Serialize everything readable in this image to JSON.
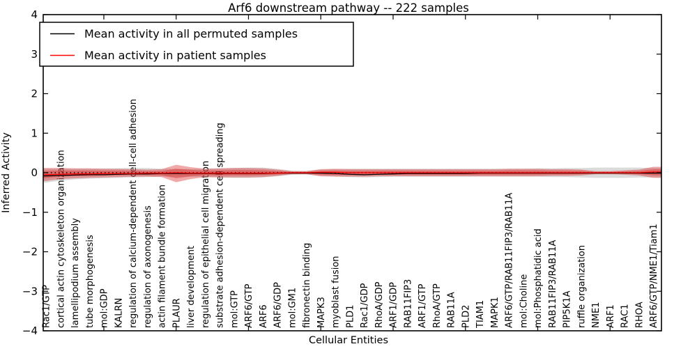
{
  "chart_data": {
    "type": "line",
    "title": "Arf6 downstream pathway -- 222 samples",
    "xlabel": "Cellular Entities",
    "ylabel": "Inferred Activity",
    "ylim": [
      -4,
      4
    ],
    "yticks": [
      -4,
      -3,
      -2,
      -1,
      0,
      1,
      2,
      3,
      4
    ],
    "grid": false,
    "legend_position": "upper left",
    "zero_line": {
      "y": 0,
      "style": "dotted",
      "color": "#000000"
    },
    "categories": [
      "Rac1/GTP",
      "cortical actin cytoskeleton organization",
      "lamellipodium assembly",
      "tube morphogenesis",
      "mol:GDP",
      "KALRN",
      "regulation of calcium-dependent cell-cell adhesion",
      "regulation of axonogenesis",
      "actin filament bundle formation",
      "PLAUR",
      "liver development",
      "regulation of epithelial cell migration",
      "substrate adhesion-dependent cell spreading",
      "mol:GTP",
      "ARF6/GTP",
      "ARF6",
      "ARF6/GDP",
      "mol:GM1",
      "fibronectin binding",
      "MAPK3",
      "myoblast fusion",
      "PLD1",
      "Rac1/GDP",
      "RhoA/GDP",
      "ARF1/GDP",
      "RAB11FIP3",
      "ARF1/GTP",
      "RhoA/GTP",
      "RAB11A",
      "PLD2",
      "TIAM1",
      "MAPK1",
      "ARF6/GTP/RAB11FIP3/RAB11A",
      "mol:Choline",
      "mol:Phosphatidic acid",
      "RAB11FIP3/RAB11A",
      "PIP5K1A",
      "ruffle organization",
      "NME1",
      "ARF1",
      "RAC1",
      "RHOA",
      "ARF6/GTP/NME1/Tiam1"
    ],
    "series": [
      {
        "name": "Mean activity in all permuted samples",
        "color": "#000000",
        "band_color": "#999999",
        "band_opacity": 0.35,
        "values": [
          -0.08,
          -0.07,
          -0.06,
          -0.05,
          -0.05,
          -0.04,
          -0.03,
          -0.03,
          -0.02,
          -0.02,
          -0.02,
          -0.02,
          -0.02,
          -0.02,
          -0.02,
          -0.02,
          -0.01,
          -0.01,
          -0.01,
          -0.01,
          -0.02,
          -0.04,
          -0.05,
          -0.04,
          -0.03,
          -0.02,
          -0.02,
          -0.02,
          -0.02,
          -0.02,
          -0.01,
          -0.01,
          -0.01,
          -0.01,
          -0.01,
          -0.01,
          -0.01,
          -0.01,
          -0.01,
          -0.01,
          -0.01,
          -0.01,
          -0.01
        ],
        "band_upper": [
          0.1,
          0.1,
          0.1,
          0.1,
          0.11,
          0.11,
          0.12,
          0.12,
          0.1,
          0.09,
          0.09,
          0.1,
          0.11,
          0.12,
          0.13,
          0.13,
          0.1,
          0.05,
          0.04,
          0.08,
          0.09,
          0.1,
          0.1,
          0.1,
          0.1,
          0.1,
          0.1,
          0.1,
          0.1,
          0.1,
          0.1,
          0.1,
          0.1,
          0.1,
          0.11,
          0.11,
          0.12,
          0.12,
          0.13,
          0.13,
          0.13,
          0.13,
          0.12
        ],
        "band_lower": [
          -0.25,
          -0.2,
          -0.17,
          -0.15,
          -0.14,
          -0.13,
          -0.12,
          -0.11,
          -0.1,
          -0.1,
          -0.1,
          -0.11,
          -0.12,
          -0.13,
          -0.13,
          -0.12,
          -0.09,
          -0.05,
          -0.04,
          -0.08,
          -0.09,
          -0.11,
          -0.12,
          -0.11,
          -0.1,
          -0.1,
          -0.1,
          -0.1,
          -0.1,
          -0.1,
          -0.1,
          -0.1,
          -0.1,
          -0.1,
          -0.1,
          -0.11,
          -0.11,
          -0.12,
          -0.13,
          -0.13,
          -0.13,
          -0.12,
          -0.12
        ]
      },
      {
        "name": "Mean activity in patient samples",
        "color": "#ff0000",
        "band_color": "#d92525",
        "band_opacity": 0.4,
        "values": [
          -0.05,
          -0.04,
          -0.03,
          -0.03,
          -0.02,
          -0.02,
          -0.02,
          -0.01,
          -0.01,
          0.0,
          -0.01,
          -0.01,
          -0.01,
          -0.01,
          -0.01,
          -0.01,
          -0.01,
          0.0,
          0.0,
          0.01,
          0.01,
          0.0,
          0.0,
          0.0,
          0.0,
          0.0,
          0.0,
          0.0,
          0.0,
          0.0,
          0.0,
          0.0,
          0.0,
          0.0,
          0.0,
          0.0,
          0.0,
          0.0,
          0.0,
          0.0,
          0.0,
          0.0,
          0.02
        ],
        "band_upper": [
          0.12,
          0.12,
          0.11,
          0.11,
          0.1,
          0.1,
          0.09,
          0.08,
          0.09,
          0.2,
          0.14,
          0.1,
          0.11,
          0.12,
          0.12,
          0.11,
          0.08,
          0.04,
          0.04,
          0.09,
          0.1,
          0.09,
          0.09,
          0.09,
          0.09,
          0.09,
          0.09,
          0.09,
          0.09,
          0.09,
          0.09,
          0.09,
          0.1,
          0.1,
          0.1,
          0.09,
          0.09,
          0.08,
          0.04,
          0.04,
          0.06,
          0.08,
          0.15
        ],
        "band_lower": [
          -0.21,
          -0.16,
          -0.14,
          -0.13,
          -0.12,
          -0.11,
          -0.1,
          -0.1,
          -0.11,
          -0.24,
          -0.16,
          -0.11,
          -0.12,
          -0.12,
          -0.12,
          -0.11,
          -0.08,
          -0.04,
          -0.04,
          -0.09,
          -0.1,
          -0.1,
          -0.1,
          -0.09,
          -0.09,
          -0.09,
          -0.09,
          -0.09,
          -0.09,
          -0.09,
          -0.09,
          -0.09,
          -0.09,
          -0.09,
          -0.09,
          -0.08,
          -0.08,
          -0.07,
          -0.04,
          -0.04,
          -0.05,
          -0.07,
          -0.13
        ]
      }
    ]
  }
}
